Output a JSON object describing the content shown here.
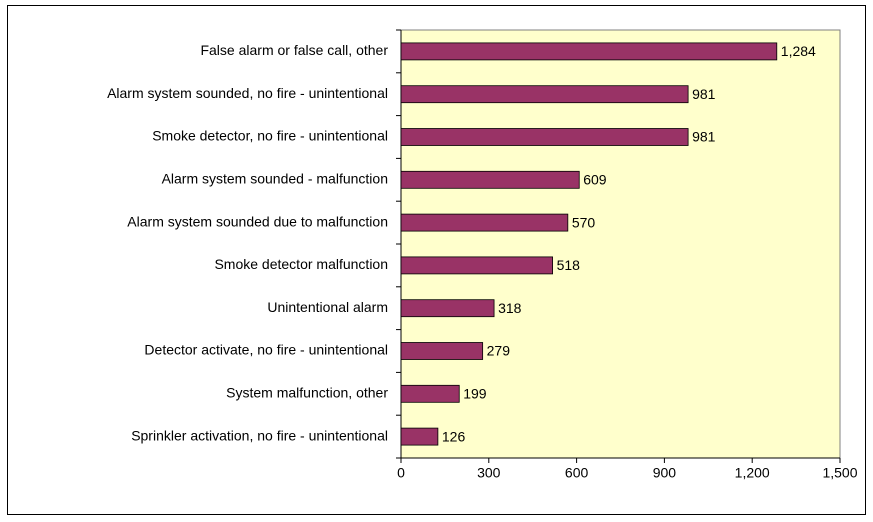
{
  "chart_data": {
    "type": "bar",
    "orientation": "horizontal",
    "categories": [
      "False alarm or false call, other",
      "Alarm system sounded, no fire - unintentional",
      "Smoke detector, no fire - unintentional",
      "Alarm system sounded - malfunction",
      "Alarm system sounded due to malfunction",
      "Smoke detector malfunction",
      "Unintentional alarm",
      "Detector activate, no fire - unintentional",
      "System malfunction, other",
      "Sprinkler activation, no fire - unintentional"
    ],
    "values": [
      1284,
      981,
      981,
      609,
      570,
      518,
      318,
      279,
      199,
      126
    ],
    "value_labels": [
      "1,284",
      "981",
      "981",
      "609",
      "570",
      "518",
      "318",
      "279",
      "199",
      "126"
    ],
    "color": "#993366",
    "background": "#ffffcc",
    "xlim": [
      0,
      1500
    ],
    "xticks": [
      0,
      300,
      600,
      900,
      {
        "value": 1200,
        "label": "1,200"
      },
      {
        "value": 1500,
        "label": "1,500"
      }
    ]
  }
}
